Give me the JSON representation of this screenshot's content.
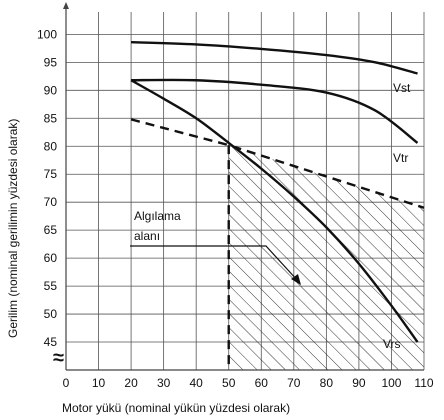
{
  "chart_data": {
    "type": "line",
    "xlabel": "Motor yükü (nominal yükün yüzdesi olarak)",
    "ylabel": "Gerilim (nominal gerilimin yüzdesi olarak)",
    "x_ticks": [
      0,
      10,
      20,
      30,
      40,
      50,
      60,
      70,
      80,
      90,
      100,
      110
    ],
    "y_ticks": [
      45,
      50,
      55,
      60,
      65,
      70,
      75,
      80,
      85,
      90,
      95,
      100
    ],
    "xlim": [
      0,
      110
    ],
    "ylim": [
      40,
      104
    ],
    "y_axis_break_symbol": "≈",
    "grid": true,
    "series": [
      {
        "name": "Vst",
        "style": "solid",
        "x": [
          20,
          40,
          60,
          80,
          95,
          108
        ],
        "y": [
          98.6,
          98.2,
          97.4,
          96.3,
          95.0,
          93.0
        ]
      },
      {
        "name": "Vtr",
        "style": "solid",
        "x": [
          20,
          40,
          60,
          80,
          95,
          108
        ],
        "y": [
          91.8,
          91.8,
          91.0,
          89.6,
          86.4,
          80.6
        ]
      },
      {
        "name": "Vrs",
        "style": "solid",
        "x": [
          20,
          30,
          40,
          50,
          60,
          70,
          80,
          90,
          100,
          108
        ],
        "y": [
          91.8,
          88.5,
          85.0,
          80.6,
          76.0,
          71.0,
          65.5,
          59.0,
          51.5,
          45.0
        ]
      },
      {
        "name": "",
        "style": "dashed",
        "x": [
          20,
          50,
          110
        ],
        "y": [
          84.8,
          80.2,
          69.0
        ]
      }
    ],
    "shaded_region": {
      "label": "Algılama alanı",
      "x_start": 50,
      "x_end": 110,
      "upper_boundary": "dashed",
      "hatch": "diagonal"
    },
    "annotation": {
      "lines": [
        "Algılama",
        "alanı"
      ]
    }
  }
}
